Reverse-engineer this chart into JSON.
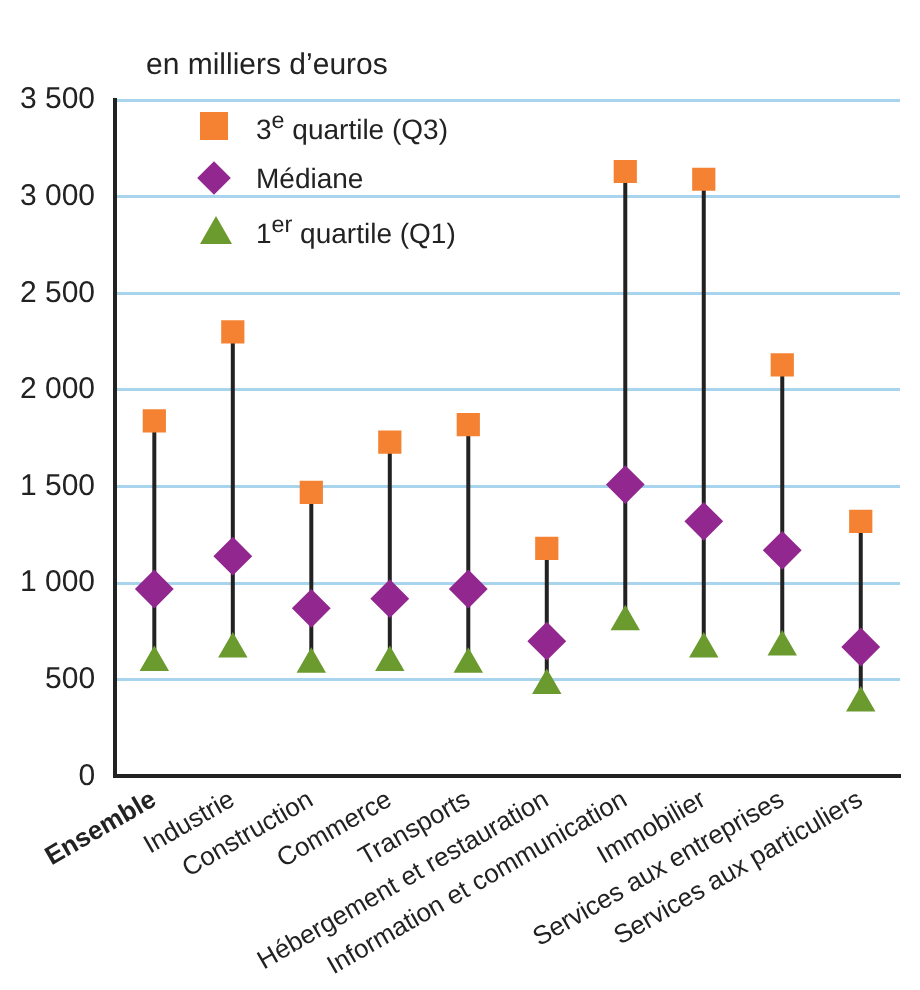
{
  "chart_data": {
    "type": "scatter",
    "ylabel": "en milliers d’euros",
    "categories": [
      "Ensemble",
      "Industrie",
      "Construction",
      "Commerce",
      "Transports",
      "Hébergement et restauration",
      "Information et communication",
      "Immobilier",
      "Services aux entreprises",
      "Services aux particuliers"
    ],
    "series": [
      {
        "name": "3$^{e}$ quartile (Q3)",
        "color": "#f58233",
        "marker": "square",
        "values": [
          1840,
          2300,
          1470,
          1730,
          1820,
          1180,
          3130,
          3090,
          2130,
          1320
        ]
      },
      {
        "name": "Médiane",
        "color": "#92278f",
        "marker": "diamond",
        "values": [
          970,
          1140,
          870,
          920,
          970,
          700,
          1510,
          1320,
          1170,
          670
        ]
      },
      {
        "name": "1$^{er}$ quartile (Q1)",
        "color": "#6b9a2e",
        "marker": "triangle",
        "values": [
          590,
          660,
          580,
          590,
          580,
          470,
          800,
          660,
          670,
          380
        ]
      }
    ],
    "ylim": [
      0,
      3500
    ],
    "yticks": [
      0,
      500,
      1000,
      1500,
      2000,
      2500,
      3000,
      3500
    ],
    "grid": "y",
    "legend": "top left"
  }
}
